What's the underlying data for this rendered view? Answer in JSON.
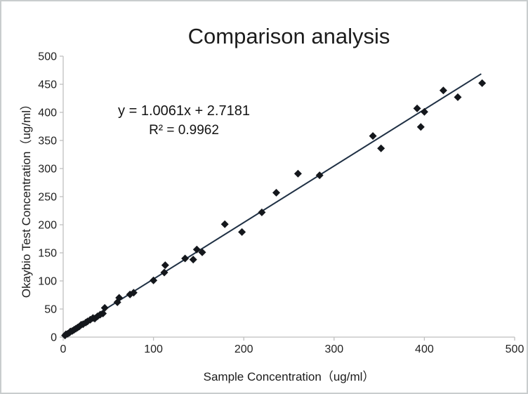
{
  "window": {
    "background": "#ffffff",
    "border_color": "#c9cdce"
  },
  "chart_data": {
    "type": "scatter",
    "title": "Comparison analysis",
    "xlabel": "Sample Concentration（ug/ml）",
    "ylabel": "Okaybio Test Concentration（ug/ml）",
    "annotation": {
      "equation": "y = 1.0061x + 2.7181",
      "r_squared": "R² = 0.9962"
    },
    "xlim": [
      0,
      500
    ],
    "ylim": [
      0,
      500
    ],
    "xticks": [
      0,
      100,
      200,
      300,
      400,
      500
    ],
    "yticks": [
      0,
      50,
      100,
      150,
      200,
      250,
      300,
      350,
      400,
      450,
      500
    ],
    "grid": false,
    "legend": false,
    "marker": "diamond",
    "colors": {
      "marker": "#14171c",
      "trendline": "#1f3044",
      "axis": "#bfbfbf",
      "tick_text": "#1f1f1f"
    },
    "trendline": {
      "slope": 1.0061,
      "intercept": 2.7181,
      "x_start": 0,
      "x_end": 463
    },
    "points": [
      [
        2,
        3
      ],
      [
        3,
        5
      ],
      [
        5,
        6
      ],
      [
        7,
        8
      ],
      [
        8,
        10
      ],
      [
        10,
        11
      ],
      [
        12,
        13
      ],
      [
        14,
        15
      ],
      [
        16,
        17
      ],
      [
        18,
        19
      ],
      [
        20,
        22
      ],
      [
        22,
        23
      ],
      [
        25,
        26
      ],
      [
        27,
        28
      ],
      [
        30,
        31
      ],
      [
        33,
        34
      ],
      [
        35,
        33
      ],
      [
        38,
        37
      ],
      [
        41,
        40
      ],
      [
        44,
        42
      ],
      [
        46,
        52
      ],
      [
        60,
        62
      ],
      [
        62,
        70
      ],
      [
        74,
        76
      ],
      [
        78,
        79
      ],
      [
        100,
        101
      ],
      [
        112,
        115
      ],
      [
        113,
        128
      ],
      [
        135,
        140
      ],
      [
        144,
        138
      ],
      [
        148,
        156
      ],
      [
        154,
        151
      ],
      [
        179,
        201
      ],
      [
        198,
        187
      ],
      [
        220,
        222
      ],
      [
        236,
        257
      ],
      [
        260,
        291
      ],
      [
        284,
        288
      ],
      [
        343,
        358
      ],
      [
        352,
        336
      ],
      [
        392,
        407
      ],
      [
        396,
        374
      ],
      [
        400,
        401
      ],
      [
        421,
        439
      ],
      [
        437,
        427
      ],
      [
        464,
        452
      ]
    ]
  }
}
